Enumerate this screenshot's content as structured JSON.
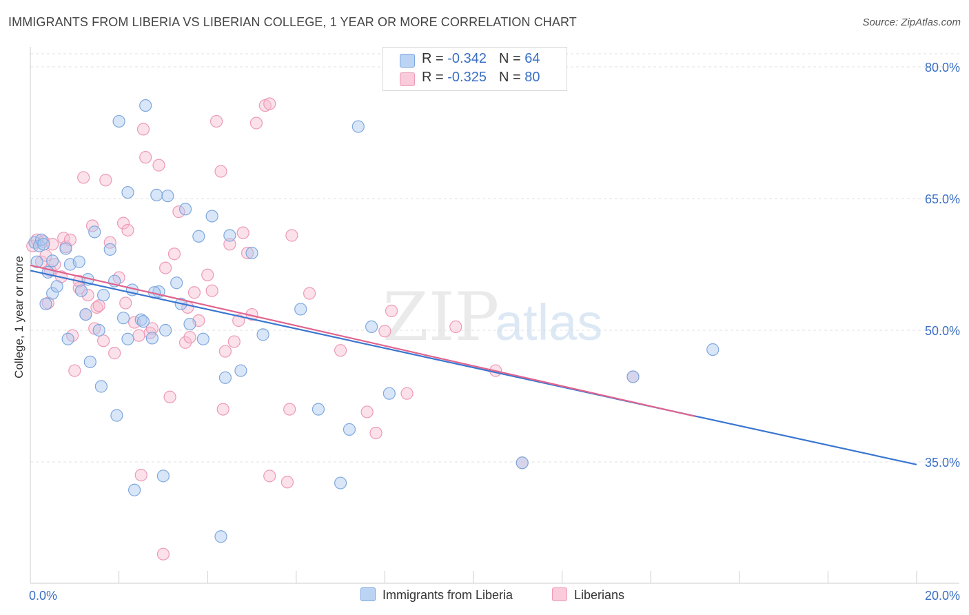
{
  "title": "IMMIGRANTS FROM LIBERIA VS LIBERIAN COLLEGE, 1 YEAR OR MORE CORRELATION CHART",
  "source": "Source: ZipAtlas.com",
  "watermark": {
    "zip": "ZIP",
    "atlas": "atlas"
  },
  "colors": {
    "blue_fill": "#a9c8f0",
    "blue_stroke": "#7fa8de",
    "blue_line": "#3a76d0",
    "pink_fill": "#f7bcd0",
    "pink_stroke": "#ee9ab8",
    "pink_line": "#e0648e",
    "axis_label": "#3a6fc4",
    "grid": "#e2e2e2"
  },
  "legend_top": {
    "rows": [
      {
        "r_label": "R = ",
        "r_value": "-0.342",
        "n_label": "N = ",
        "n_value": "64"
      },
      {
        "r_label": "R = ",
        "r_value": "-0.325",
        "n_label": "N = ",
        "n_value": "80"
      }
    ]
  },
  "legend_bottom": {
    "series1": "Immigrants from Liberia",
    "series2": "Liberians"
  },
  "chart_data": {
    "type": "scatter",
    "xlabel": "",
    "ylabel": "College, 1 year or more",
    "xlim": [
      0,
      20
    ],
    "ylim": [
      20,
      83
    ],
    "x_tick_labels": [
      "0.0%",
      "20.0%"
    ],
    "y_ticks": [
      35,
      50,
      65,
      80
    ],
    "y_tick_labels": [
      "35.0%",
      "50.0%",
      "65.0%",
      "80.0%"
    ],
    "grid": true,
    "legend_placement": "top-center",
    "series": [
      {
        "name": "Immigrants from Liberia",
        "color": "#a9c8f0",
        "trend": {
          "x": [
            0,
            20
          ],
          "y": [
            56.8,
            34.7
          ]
        },
        "points": [
          [
            0.1,
            60
          ],
          [
            0.2,
            59.6
          ],
          [
            0.25,
            60.3
          ],
          [
            0.3,
            59.8
          ],
          [
            0.15,
            57.8
          ],
          [
            0.35,
            53
          ],
          [
            0.4,
            56.6
          ],
          [
            0.5,
            54.2
          ],
          [
            0.6,
            55
          ],
          [
            0.8,
            59.3
          ],
          [
            0.9,
            57.5
          ],
          [
            1.1,
            57.8
          ],
          [
            0.85,
            49
          ],
          [
            1.15,
            54.5
          ],
          [
            1.25,
            51.8
          ],
          [
            1.3,
            55.8
          ],
          [
            1.35,
            46.4
          ],
          [
            1.45,
            61.2
          ],
          [
            1.55,
            50
          ],
          [
            1.6,
            43.6
          ],
          [
            1.65,
            54
          ],
          [
            1.8,
            59.2
          ],
          [
            1.9,
            55.6
          ],
          [
            1.95,
            40.3
          ],
          [
            2.0,
            73.8
          ],
          [
            2.1,
            51.4
          ],
          [
            2.2,
            49
          ],
          [
            2.2,
            65.7
          ],
          [
            2.3,
            54.6
          ],
          [
            2.35,
            31.8
          ],
          [
            2.5,
            51.2
          ],
          [
            2.55,
            51
          ],
          [
            2.6,
            75.6
          ],
          [
            2.75,
            49.1
          ],
          [
            2.85,
            65.4
          ],
          [
            2.9,
            54.4
          ],
          [
            3.0,
            33.4
          ],
          [
            3.05,
            50
          ],
          [
            3.1,
            65.3
          ],
          [
            3.3,
            55.4
          ],
          [
            3.4,
            53
          ],
          [
            3.5,
            63.8
          ],
          [
            3.6,
            50.7
          ],
          [
            3.8,
            60.7
          ],
          [
            3.9,
            49
          ],
          [
            4.1,
            63
          ],
          [
            4.3,
            26.5
          ],
          [
            4.4,
            44.6
          ],
          [
            4.5,
            60.8
          ],
          [
            4.75,
            45.4
          ],
          [
            5.0,
            58.8
          ],
          [
            5.25,
            49.5
          ],
          [
            6.1,
            52.4
          ],
          [
            6.5,
            41
          ],
          [
            7.0,
            32.6
          ],
          [
            7.2,
            38.7
          ],
          [
            7.4,
            73.2
          ],
          [
            7.7,
            50.4
          ],
          [
            8.1,
            42.8
          ],
          [
            11.1,
            34.9
          ],
          [
            13.6,
            44.7
          ],
          [
            15.4,
            47.8
          ],
          [
            0.5,
            57.9
          ],
          [
            2.8,
            54.3
          ]
        ]
      },
      {
        "name": "Liberians",
        "color": "#f7bcd0",
        "trend": {
          "x": [
            0,
            15
          ],
          "y": [
            57.4,
            40.2
          ]
        },
        "points": [
          [
            0.05,
            59.6
          ],
          [
            0.15,
            60.3
          ],
          [
            0.25,
            57.8
          ],
          [
            0.3,
            60.1
          ],
          [
            0.4,
            53.1
          ],
          [
            0.45,
            56.8
          ],
          [
            0.5,
            59.8
          ],
          [
            0.55,
            57.5
          ],
          [
            0.7,
            56.1
          ],
          [
            0.75,
            60.5
          ],
          [
            0.8,
            59.5
          ],
          [
            0.9,
            60.3
          ],
          [
            0.95,
            49.4
          ],
          [
            1.0,
            45.4
          ],
          [
            1.1,
            54.8
          ],
          [
            1.2,
            67.4
          ],
          [
            1.25,
            51.8
          ],
          [
            1.3,
            54
          ],
          [
            1.4,
            61.9
          ],
          [
            1.45,
            50.2
          ],
          [
            1.5,
            52.6
          ],
          [
            1.55,
            52.8
          ],
          [
            1.65,
            48.8
          ],
          [
            1.7,
            67.1
          ],
          [
            1.8,
            60
          ],
          [
            1.9,
            47.4
          ],
          [
            2.0,
            56
          ],
          [
            2.1,
            62.2
          ],
          [
            2.15,
            53.1
          ],
          [
            2.2,
            61.4
          ],
          [
            2.35,
            50.9
          ],
          [
            2.45,
            49.4
          ],
          [
            2.5,
            33.5
          ],
          [
            2.55,
            72.9
          ],
          [
            2.6,
            69.7
          ],
          [
            2.7,
            49.7
          ],
          [
            2.75,
            50.2
          ],
          [
            2.9,
            68.8
          ],
          [
            3.0,
            24.5
          ],
          [
            3.05,
            57.1
          ],
          [
            3.15,
            42.4
          ],
          [
            3.25,
            58.7
          ],
          [
            3.35,
            63.5
          ],
          [
            3.5,
            48.6
          ],
          [
            3.55,
            52.6
          ],
          [
            3.6,
            49.2
          ],
          [
            3.7,
            54.3
          ],
          [
            3.8,
            51.1
          ],
          [
            4.0,
            56.3
          ],
          [
            4.1,
            54.5
          ],
          [
            4.2,
            73.8
          ],
          [
            4.3,
            68.1
          ],
          [
            4.35,
            41
          ],
          [
            4.4,
            47.6
          ],
          [
            4.5,
            59.8
          ],
          [
            4.6,
            48.7
          ],
          [
            4.7,
            51.1
          ],
          [
            4.8,
            61.1
          ],
          [
            4.9,
            58.8
          ],
          [
            5.0,
            51.8
          ],
          [
            5.1,
            73.6
          ],
          [
            5.3,
            75.6
          ],
          [
            5.4,
            75.8
          ],
          [
            5.4,
            33.4
          ],
          [
            5.8,
            32.7
          ],
          [
            5.85,
            41
          ],
          [
            5.9,
            60.8
          ],
          [
            6.3,
            54.2
          ],
          [
            7.0,
            47.7
          ],
          [
            7.6,
            40.7
          ],
          [
            7.8,
            38.3
          ],
          [
            8.0,
            49.9
          ],
          [
            8.15,
            52.2
          ],
          [
            8.5,
            42.8
          ],
          [
            9.6,
            50.4
          ],
          [
            10.5,
            45.4
          ],
          [
            11.1,
            34.9
          ],
          [
            13.6,
            44.7
          ],
          [
            0.35,
            58.5
          ],
          [
            1.1,
            55.6
          ]
        ]
      }
    ]
  }
}
